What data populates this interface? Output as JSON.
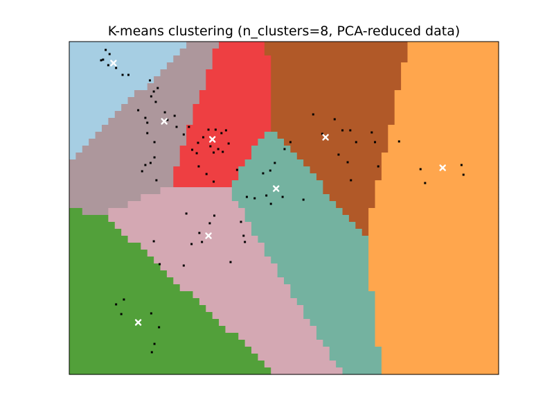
{
  "chart_data": {
    "type": "scatter",
    "title": "K-means clustering (n_clusters=8, PCA-reduced data)",
    "xlabel": "",
    "ylabel": "",
    "xticks": [],
    "yticks": [],
    "grid": false,
    "legend": "none",
    "xlim": [
      -3.2,
      3.4
    ],
    "ylim": [
      -2.4,
      2.4
    ],
    "background": "decision-regions",
    "region_colors": [
      "#a6cee3",
      "#ad979c",
      "#ee3f42",
      "#b15928",
      "#ffa64d",
      "#74b2a0",
      "#d4a8b3",
      "#52a03a"
    ],
    "centroid_color": "#ffffff",
    "point_color": "#000000",
    "centroids": [
      {
        "x": -2.52,
        "y": 2.09
      },
      {
        "x": -1.74,
        "y": 1.25
      },
      {
        "x": -1.0,
        "y": 0.99
      },
      {
        "x": 0.74,
        "y": 1.02
      },
      {
        "x": 2.54,
        "y": 0.58
      },
      {
        "x": -0.02,
        "y": 0.28
      },
      {
        "x": -1.06,
        "y": -0.4
      },
      {
        "x": -2.14,
        "y": -1.65
      }
    ],
    "points": [
      {
        "x": -2.64,
        "y": 2.28
      },
      {
        "x": -2.58,
        "y": 2.22
      },
      {
        "x": -2.68,
        "y": 2.14
      },
      {
        "x": -2.71,
        "y": 2.13
      },
      {
        "x": -2.6,
        "y": 2.06
      },
      {
        "x": -2.48,
        "y": 2.02
      },
      {
        "x": -2.38,
        "y": 1.92
      },
      {
        "x": -2.29,
        "y": 1.92
      },
      {
        "x": -1.96,
        "y": 1.84
      },
      {
        "x": -1.9,
        "y": 1.68
      },
      {
        "x": -1.84,
        "y": 1.73
      },
      {
        "x": -1.94,
        "y": 1.61
      },
      {
        "x": -1.87,
        "y": 1.53
      },
      {
        "x": -2.14,
        "y": 1.41
      },
      {
        "x": -1.73,
        "y": 1.38
      },
      {
        "x": -1.69,
        "y": 1.27
      },
      {
        "x": -2.03,
        "y": 1.3
      },
      {
        "x": -2.0,
        "y": 1.23
      },
      {
        "x": -1.58,
        "y": 1.33
      },
      {
        "x": -1.55,
        "y": 1.17
      },
      {
        "x": -2.0,
        "y": 1.08
      },
      {
        "x": -1.36,
        "y": 1.17
      },
      {
        "x": -1.06,
        "y": 1.13
      },
      {
        "x": -0.95,
        "y": 1.13
      },
      {
        "x": -0.86,
        "y": 1.08
      },
      {
        "x": -0.79,
        "y": 1.12
      },
      {
        "x": -1.14,
        "y": 1.02
      },
      {
        "x": -1.44,
        "y": 1.06
      },
      {
        "x": -1.22,
        "y": 0.94
      },
      {
        "x": -1.03,
        "y": 0.89
      },
      {
        "x": -0.91,
        "y": 0.85
      },
      {
        "x": -0.98,
        "y": 0.8
      },
      {
        "x": -0.84,
        "y": 0.81
      },
      {
        "x": -0.75,
        "y": 0.93
      },
      {
        "x": -1.89,
        "y": 0.95
      },
      {
        "x": -1.31,
        "y": 0.84
      },
      {
        "x": -1.24,
        "y": 0.79
      },
      {
        "x": -1.89,
        "y": 0.73
      },
      {
        "x": -1.95,
        "y": 0.65
      },
      {
        "x": -2.03,
        "y": 0.62
      },
      {
        "x": -2.08,
        "y": 0.53
      },
      {
        "x": -1.86,
        "y": 0.4
      },
      {
        "x": -1.21,
        "y": 0.6
      },
      {
        "x": -0.62,
        "y": 0.55
      },
      {
        "x": -1.09,
        "y": 0.49
      },
      {
        "x": -0.98,
        "y": 0.38
      },
      {
        "x": -0.47,
        "y": 0.16
      },
      {
        "x": -0.35,
        "y": 0.14
      },
      {
        "x": -0.17,
        "y": 0.18
      },
      {
        "x": -1.4,
        "y": -0.08
      },
      {
        "x": -1.04,
        "y": -0.22
      },
      {
        "x": -0.97,
        "y": -0.11
      },
      {
        "x": -0.56,
        "y": -0.2
      },
      {
        "x": -0.52,
        "y": -0.4
      },
      {
        "x": -0.5,
        "y": -0.49
      },
      {
        "x": -1.2,
        "y": -0.36
      },
      {
        "x": -1.32,
        "y": -0.52
      },
      {
        "x": -1.16,
        "y": -0.49
      },
      {
        "x": -1.9,
        "y": -0.48
      },
      {
        "x": -0.72,
        "y": -0.78
      },
      {
        "x": -1.81,
        "y": -0.81
      },
      {
        "x": -1.44,
        "y": -0.83
      },
      {
        "x": -2.36,
        "y": -1.32
      },
      {
        "x": -2.48,
        "y": -1.39
      },
      {
        "x": -2.4,
        "y": -1.53
      },
      {
        "x": -1.94,
        "y": -1.52
      },
      {
        "x": -1.82,
        "y": -1.72
      },
      {
        "x": -1.89,
        "y": -1.96
      },
      {
        "x": -1.93,
        "y": -2.08
      },
      {
        "x": -0.04,
        "y": 0.65
      },
      {
        "x": -0.11,
        "y": 0.54
      },
      {
        "x": -0.22,
        "y": 0.5
      },
      {
        "x": -0.1,
        "y": 0.06
      },
      {
        "x": 0.08,
        "y": 0.16
      },
      {
        "x": 0.4,
        "y": 0.12
      },
      {
        "x": 0.11,
        "y": 0.85
      },
      {
        "x": 0.2,
        "y": 0.95
      },
      {
        "x": 0.55,
        "y": 1.35
      },
      {
        "x": 0.69,
        "y": 1.07
      },
      {
        "x": 0.88,
        "y": 1.28
      },
      {
        "x": 1.0,
        "y": 1.12
      },
      {
        "x": 1.12,
        "y": 1.12
      },
      {
        "x": 1.45,
        "y": 1.09
      },
      {
        "x": 1.5,
        "y": 0.95
      },
      {
        "x": 0.94,
        "y": 0.77
      },
      {
        "x": 1.55,
        "y": 0.6
      },
      {
        "x": 1.87,
        "y": 0.96
      },
      {
        "x": 1.21,
        "y": 0.95
      },
      {
        "x": 1.08,
        "y": 0.66
      },
      {
        "x": 1.13,
        "y": 0.4
      },
      {
        "x": 2.2,
        "y": 0.56
      },
      {
        "x": 2.27,
        "y": 0.36
      },
      {
        "x": 2.83,
        "y": 0.62
      },
      {
        "x": 2.86,
        "y": 0.48
      }
    ]
  }
}
